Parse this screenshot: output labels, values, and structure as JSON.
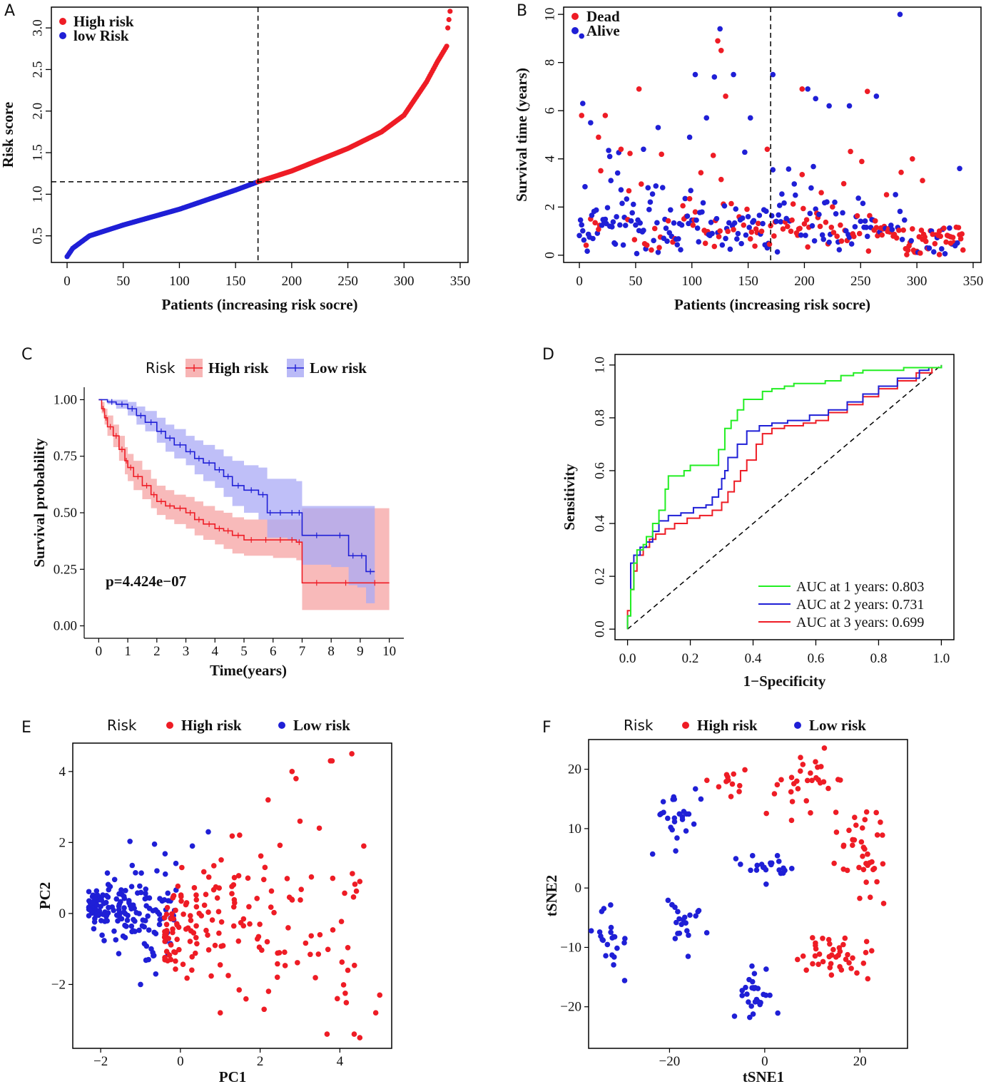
{
  "figure": {
    "panel_labels": [
      "A",
      "B",
      "C",
      "D",
      "E",
      "F"
    ]
  },
  "chart_data": [
    {
      "id": "A",
      "type": "scatter",
      "xlabel": "Patients (increasing risk socre)",
      "ylabel": "Risk score",
      "xlim": [
        0,
        350
      ],
      "ylim": [
        0.25,
        3.2
      ],
      "xticks": [
        0,
        50,
        100,
        150,
        200,
        250,
        300,
        350
      ],
      "yticks": [
        0.5,
        1.0,
        1.5,
        2.0,
        2.5,
        3.0
      ],
      "cutoff_x": 170,
      "cutoff_y": 1.15,
      "n_patients": 342,
      "risk_curve_keypoints": [
        [
          0,
          0.25
        ],
        [
          5,
          0.35
        ],
        [
          20,
          0.5
        ],
        [
          50,
          0.63
        ],
        [
          100,
          0.82
        ],
        [
          150,
          1.05
        ],
        [
          170,
          1.15
        ],
        [
          200,
          1.28
        ],
        [
          250,
          1.55
        ],
        [
          280,
          1.75
        ],
        [
          300,
          1.95
        ],
        [
          320,
          2.35
        ],
        [
          330,
          2.6
        ],
        [
          338,
          2.78
        ],
        [
          339,
          3.0
        ],
        [
          341,
          3.2
        ]
      ],
      "legend": [
        {
          "label": "High risk",
          "color": "#ee1c25"
        },
        {
          "label": "low Risk",
          "color": "#1f1fd6"
        }
      ]
    },
    {
      "id": "B",
      "type": "scatter",
      "xlabel": "Patients (increasing risk socre)",
      "ylabel": "Survival time (years)",
      "xlim": [
        0,
        350
      ],
      "ylim": [
        0,
        10
      ],
      "xticks": [
        0,
        50,
        100,
        150,
        200,
        250,
        300,
        350
      ],
      "yticks": [
        0,
        2,
        4,
        6,
        8,
        10
      ],
      "cutoff_x": 170,
      "legend": [
        {
          "label": "Dead",
          "color": "#ee1c25"
        },
        {
          "label": "Alive",
          "color": "#1f1fd6"
        }
      ],
      "points_sample": [
        [
          2,
          9.1,
          "alive"
        ],
        [
          3,
          6.3,
          "alive"
        ],
        [
          2,
          5.8,
          "dead"
        ],
        [
          10,
          5.5,
          "alive"
        ],
        [
          17,
          4.9,
          "dead"
        ],
        [
          23,
          5.8,
          "dead"
        ],
        [
          27,
          4.1,
          "alive"
        ],
        [
          37,
          4.4,
          "dead"
        ],
        [
          53,
          6.9,
          "dead"
        ],
        [
          57,
          4.4,
          "alive"
        ],
        [
          70,
          5.3,
          "alive"
        ],
        [
          98,
          4.9,
          "alive"
        ],
        [
          103,
          7.5,
          "alive"
        ],
        [
          113,
          5.7,
          "alive"
        ],
        [
          120,
          7.4,
          "alive"
        ],
        [
          123,
          8.9,
          "dead"
        ],
        [
          125,
          9.4,
          "alive"
        ],
        [
          126,
          8.5,
          "dead"
        ],
        [
          130,
          6.6,
          "dead"
        ],
        [
          137,
          7.5,
          "alive"
        ],
        [
          152,
          5.7,
          "alive"
        ],
        [
          167,
          4.4,
          "dead"
        ],
        [
          172,
          7.5,
          "alive"
        ],
        [
          198,
          6.9,
          "dead"
        ],
        [
          203,
          6.9,
          "alive"
        ],
        [
          210,
          6.5,
          "alive"
        ],
        [
          222,
          6.2,
          "alive"
        ],
        [
          240,
          6.2,
          "alive"
        ],
        [
          256,
          6.8,
          "dead"
        ],
        [
          264,
          6.6,
          "alive"
        ],
        [
          285,
          10.0,
          "alive"
        ],
        [
          296,
          4.0,
          "dead"
        ],
        [
          305,
          3.1,
          "dead"
        ],
        [
          338,
          3.6,
          "alive"
        ],
        [
          320,
          1.0,
          "dead"
        ],
        [
          330,
          0.5,
          "dead"
        ]
      ]
    },
    {
      "id": "C",
      "type": "line",
      "title": "",
      "legend_title": "Risk",
      "xlabel": "Time(years)",
      "ylabel": "Survival probability",
      "xlim": [
        0,
        10
      ],
      "ylim": [
        0,
        1
      ],
      "xticks": [
        0,
        1,
        2,
        3,
        4,
        5,
        6,
        7,
        8,
        9,
        10
      ],
      "yticks": [
        "0.00",
        "0.25",
        "0.50",
        "0.75",
        "1.00"
      ],
      "annotation": "p=4.424e−07",
      "series": [
        {
          "name": "High risk",
          "color": "#ee1c25",
          "band_color": "#f5a3a3",
          "x": [
            0,
            0.1,
            0.2,
            0.3,
            0.5,
            0.7,
            0.9,
            1.0,
            1.2,
            1.5,
            1.8,
            2.0,
            2.3,
            2.6,
            3.0,
            3.3,
            3.6,
            4.0,
            4.3,
            4.6,
            5.0,
            5.5,
            6.0,
            6.5,
            6.8,
            7.0,
            8.0,
            9.0,
            10.0
          ],
          "y": [
            1.0,
            0.96,
            0.92,
            0.88,
            0.84,
            0.78,
            0.73,
            0.7,
            0.66,
            0.62,
            0.58,
            0.55,
            0.53,
            0.52,
            0.5,
            0.47,
            0.45,
            0.43,
            0.42,
            0.4,
            0.38,
            0.38,
            0.38,
            0.38,
            0.37,
            0.19,
            0.19,
            0.19,
            0.19
          ],
          "lower": [
            1.0,
            0.94,
            0.89,
            0.84,
            0.79,
            0.73,
            0.67,
            0.64,
            0.6,
            0.56,
            0.52,
            0.49,
            0.47,
            0.45,
            0.43,
            0.4,
            0.38,
            0.36,
            0.34,
            0.32,
            0.31,
            0.31,
            0.3,
            0.3,
            0.29,
            0.07,
            0.07,
            0.07,
            0.07
          ],
          "upper": [
            1.0,
            0.99,
            0.96,
            0.93,
            0.89,
            0.84,
            0.79,
            0.76,
            0.73,
            0.69,
            0.65,
            0.62,
            0.6,
            0.58,
            0.57,
            0.55,
            0.53,
            0.51,
            0.5,
            0.48,
            0.47,
            0.47,
            0.47,
            0.47,
            0.47,
            0.52,
            0.52,
            0.52,
            0.52
          ]
        },
        {
          "name": "Low risk",
          "color": "#1f1fd6",
          "band_color": "#a9a9f5",
          "x": [
            0,
            0.3,
            0.6,
            1.0,
            1.3,
            1.6,
            2.0,
            2.3,
            2.6,
            3.0,
            3.3,
            3.6,
            4.0,
            4.3,
            4.6,
            5.0,
            5.5,
            5.8,
            6.0,
            6.5,
            6.8,
            7.0,
            8.0,
            8.6,
            8.9,
            9.2,
            9.5
          ],
          "y": [
            1.0,
            0.99,
            0.98,
            0.96,
            0.93,
            0.9,
            0.86,
            0.83,
            0.8,
            0.77,
            0.74,
            0.72,
            0.69,
            0.66,
            0.62,
            0.6,
            0.58,
            0.5,
            0.5,
            0.5,
            0.5,
            0.4,
            0.4,
            0.31,
            0.31,
            0.24,
            0.24
          ],
          "lower": [
            1.0,
            0.98,
            0.96,
            0.93,
            0.89,
            0.86,
            0.81,
            0.77,
            0.74,
            0.71,
            0.67,
            0.64,
            0.61,
            0.57,
            0.53,
            0.5,
            0.47,
            0.39,
            0.39,
            0.38,
            0.37,
            0.27,
            0.26,
            0.18,
            0.17,
            0.1,
            0.1
          ],
          "upper": [
            1.0,
            1.0,
            1.0,
            0.99,
            0.97,
            0.95,
            0.92,
            0.89,
            0.87,
            0.84,
            0.82,
            0.8,
            0.78,
            0.75,
            0.73,
            0.71,
            0.7,
            0.65,
            0.65,
            0.65,
            0.64,
            0.53,
            0.53,
            0.53,
            0.53,
            0.53,
            0.53
          ]
        }
      ]
    },
    {
      "id": "D",
      "type": "line",
      "xlabel": "1−Specificity",
      "ylabel": "Sensitivity",
      "xlim": [
        0,
        1
      ],
      "ylim": [
        0,
        1
      ],
      "xticks": [
        0.0,
        0.2,
        0.4,
        0.6,
        0.8,
        1.0
      ],
      "yticks": [
        0.0,
        0.2,
        0.4,
        0.6,
        0.8,
        1.0
      ],
      "diagonal_reference": true,
      "series": [
        {
          "name": "AUC at 1 years: 0.803",
          "color": "#22ee22",
          "x": [
            0,
            0.0,
            0.01,
            0.01,
            0.02,
            0.03,
            0.05,
            0.06,
            0.08,
            0.1,
            0.12,
            0.13,
            0.16,
            0.18,
            0.2,
            0.27,
            0.29,
            0.31,
            0.33,
            0.35,
            0.37,
            0.4,
            0.43,
            0.46,
            0.5,
            0.53,
            0.58,
            0.63,
            0.68,
            0.72,
            0.75,
            0.8,
            0.88,
            0.95,
            1.0
          ],
          "y": [
            0,
            0.05,
            0.1,
            0.15,
            0.25,
            0.3,
            0.32,
            0.35,
            0.4,
            0.45,
            0.53,
            0.58,
            0.58,
            0.6,
            0.62,
            0.62,
            0.68,
            0.76,
            0.79,
            0.83,
            0.87,
            0.87,
            0.9,
            0.91,
            0.92,
            0.93,
            0.93,
            0.94,
            0.96,
            0.97,
            0.98,
            0.98,
            0.99,
            0.99,
            1.0
          ]
        },
        {
          "name": "AUC at 2 years: 0.731",
          "color": "#1f1fd6",
          "x": [
            0,
            0.0,
            0.01,
            0.01,
            0.02,
            0.04,
            0.06,
            0.08,
            0.1,
            0.13,
            0.17,
            0.21,
            0.25,
            0.27,
            0.29,
            0.3,
            0.31,
            0.32,
            0.35,
            0.38,
            0.42,
            0.46,
            0.51,
            0.58,
            0.64,
            0.7,
            0.75,
            0.8,
            0.86,
            0.93,
            0.96,
            1.0
          ],
          "y": [
            0,
            0.05,
            0.15,
            0.25,
            0.28,
            0.31,
            0.33,
            0.37,
            0.41,
            0.43,
            0.44,
            0.46,
            0.47,
            0.5,
            0.53,
            0.57,
            0.6,
            0.65,
            0.7,
            0.75,
            0.77,
            0.78,
            0.79,
            0.81,
            0.83,
            0.86,
            0.89,
            0.92,
            0.95,
            0.98,
            0.99,
            1.0
          ]
        },
        {
          "name": "AUC at 3 years: 0.699",
          "color": "#ee1c25",
          "x": [
            0,
            0.0,
            0.01,
            0.02,
            0.03,
            0.05,
            0.07,
            0.09,
            0.12,
            0.15,
            0.19,
            0.23,
            0.27,
            0.3,
            0.32,
            0.34,
            0.36,
            0.38,
            0.41,
            0.43,
            0.46,
            0.5,
            0.56,
            0.6,
            0.64,
            0.7,
            0.75,
            0.8,
            0.86,
            0.92,
            0.97,
            1.0
          ],
          "y": [
            0,
            0.07,
            0.15,
            0.22,
            0.28,
            0.31,
            0.34,
            0.36,
            0.38,
            0.4,
            0.42,
            0.43,
            0.45,
            0.48,
            0.52,
            0.56,
            0.6,
            0.64,
            0.7,
            0.74,
            0.76,
            0.77,
            0.78,
            0.79,
            0.82,
            0.85,
            0.88,
            0.91,
            0.94,
            0.97,
            0.99,
            1.0
          ]
        }
      ]
    },
    {
      "id": "E",
      "type": "scatter",
      "legend_title": "Risk",
      "xlabel": "PC1",
      "ylabel": "PC2",
      "xlim": [
        -2.7,
        5.3
      ],
      "ylim": [
        -3.8,
        4.8
      ],
      "xticks": [
        -2,
        0,
        2,
        4
      ],
      "yticks": [
        -2,
        0,
        2,
        4
      ],
      "legend": [
        {
          "label": "High risk",
          "color": "#ee1c25"
        },
        {
          "label": "Low risk",
          "color": "#1f1fd6"
        }
      ],
      "points_sample": [
        [
          4.3,
          4.5,
          "high"
        ],
        [
          2.8,
          4.0,
          "high"
        ],
        [
          2.9,
          3.8,
          "high"
        ],
        [
          2.2,
          3.2,
          "high"
        ],
        [
          3.0,
          2.6,
          "high"
        ],
        [
          4.6,
          1.9,
          "high"
        ],
        [
          4.5,
          0.9,
          "high"
        ],
        [
          3.5,
          -0.6,
          "high"
        ],
        [
          4.2,
          -1.6,
          "high"
        ],
        [
          4.5,
          -3.5,
          "high"
        ],
        [
          5.0,
          -2.3,
          "high"
        ],
        [
          4.9,
          -2.8,
          "high"
        ],
        [
          2.1,
          -2.7,
          "high"
        ],
        [
          1.0,
          -2.8,
          "high"
        ],
        [
          0.7,
          2.3,
          "low"
        ],
        [
          -2.2,
          0.3,
          "low"
        ],
        [
          -1.0,
          -2.0,
          "low"
        ],
        [
          -0.8,
          -1.3,
          "low"
        ],
        [
          0.3,
          1.9,
          "low"
        ]
      ]
    },
    {
      "id": "F",
      "type": "scatter",
      "legend_title": "Risk",
      "xlabel": "tSNE1",
      "ylabel": "tSNE2",
      "xlim": [
        -37,
        30
      ],
      "ylim": [
        -27,
        25
      ],
      "xticks": [
        -20,
        0,
        20
      ],
      "yticks": [
        -20,
        -10,
        0,
        10,
        20
      ],
      "legend": [
        {
          "label": "High risk",
          "color": "#ee1c25"
        },
        {
          "label": "Low risk",
          "color": "#1f1fd6"
        }
      ],
      "clusters": [
        {
          "risk": "low",
          "center": [
            -32,
            -8
          ],
          "spread": [
            2.0,
            3.5
          ],
          "n": 22
        },
        {
          "risk": "low",
          "center": [
            -18,
            10
          ],
          "spread": [
            3.0,
            4.0
          ],
          "n": 25
        },
        {
          "risk": "low",
          "center": [
            -17,
            -6
          ],
          "spread": [
            2.5,
            4.0
          ],
          "n": 22
        },
        {
          "risk": "low",
          "center": [
            0,
            3.5
          ],
          "spread": [
            4.5,
            1.5
          ],
          "n": 22
        },
        {
          "risk": "low",
          "center": [
            -2,
            -18
          ],
          "spread": [
            3.0,
            3.5
          ],
          "n": 28
        },
        {
          "risk": "high",
          "center": [
            8,
            18
          ],
          "spread": [
            4.5,
            3.5
          ],
          "n": 30
        },
        {
          "risk": "high",
          "center": [
            20,
            5
          ],
          "spread": [
            4.0,
            7.0
          ],
          "n": 40
        },
        {
          "risk": "high",
          "center": [
            15,
            -12
          ],
          "spread": [
            5.0,
            3.5
          ],
          "n": 40
        },
        {
          "risk": "high",
          "center": [
            -8,
            18
          ],
          "spread": [
            4.0,
            2.5
          ],
          "n": 12
        }
      ]
    }
  ]
}
